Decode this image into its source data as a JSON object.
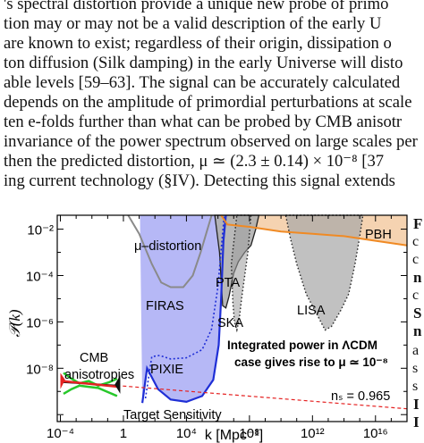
{
  "paragraph": {
    "lines": [
      "'s spectral distortion provide a unique new probe of primo",
      "tion may or may not be a valid description of the early U",
      "are known to exist; regardless of their origin, dissipation o",
      "ton diffusion (Silk damping) in the early Universe will disto",
      "able levels [59–63].  The signal can be accurately calculated",
      "depends on the amplitude of primordial perturbations at scale",
      "ten e-folds further than what can be probed by CMB anisotr",
      "invariance of the power spectrum observed on large scales per",
      "then the predicted distortion, μ ≃ (2.3 ± 0.14) × 10⁻⁸ [37",
      "ing current technology (§IV).  Detecting this signal extends"
    ]
  },
  "side_text": [
    "F",
    "c",
    "c",
    "n",
    "c",
    "S",
    "n",
    "a",
    "s",
    "s",
    "I",
    "I"
  ],
  "chart_data": {
    "type": "line",
    "xlabel": "k [Mpc⁻¹]",
    "ylabel": "𝒫(k)",
    "xscale": "log",
    "yscale": "log",
    "xlim_log10": [
      -4.2,
      18
    ],
    "ylim_log10": [
      -10.3,
      -1.4
    ],
    "x_ticks": [
      "10⁻⁴",
      "1",
      "10⁴",
      "10⁸",
      "10¹²",
      "10¹⁶"
    ],
    "x_ticks_log10": [
      -4,
      0,
      4,
      8,
      12,
      16
    ],
    "y_ticks": [
      "10⁻²",
      "10⁻⁴",
      "10⁻⁶",
      "10⁻⁸"
    ],
    "y_ticks_log10": [
      -2,
      -4,
      -6,
      -8
    ],
    "labels": {
      "mu_distortion": "μ–distortion",
      "firas": "FIRAS",
      "pixie": "PIXIE",
      "target": "Target Sensitivity",
      "pta": "PTA",
      "ska": "SKA",
      "lisa": "LISA",
      "pbh": "PBH",
      "cmb_line1": "CMB",
      "cmb_line2": "anisotropies",
      "ns": "nₛ = 0.965",
      "note_line1": "Integrated power in ΛCDM",
      "note_line2": "case gives rise to μ ≃ 10⁻⁸"
    },
    "colors": {
      "mu_region": "#a9acf5",
      "pixie_line": "#1f2fd6",
      "firas_line": "#8a8a8a",
      "pbh_line": "#f08a24",
      "pbh_fill": "#f3c89e",
      "pta_fill": "#b0b0b0",
      "ns_line": "#e52222",
      "cmb_data": "#27c82a"
    },
    "series": [
      {
        "name": "ns_line",
        "points": [
          [
            -4,
            -8.55
          ],
          [
            18,
            -9.75
          ]
        ]
      },
      {
        "name": "PIXIE",
        "points": [
          [
            1.2,
            -9.5
          ],
          [
            1.5,
            -8.0
          ],
          [
            2.2,
            -8.9
          ],
          [
            3,
            -9.35
          ],
          [
            4,
            -9.45
          ],
          [
            5,
            -9.2
          ],
          [
            5.7,
            -8.5
          ],
          [
            6.05,
            -7.0
          ],
          [
            6.2,
            -5.0
          ],
          [
            6.35,
            -2.5
          ],
          [
            6.5,
            -1.4
          ]
        ]
      },
      {
        "name": "FIRAS",
        "points": [
          [
            0.3,
            -1.4
          ],
          [
            1.0,
            -2.2
          ],
          [
            1.8,
            -3.5
          ],
          [
            2.4,
            -4.3
          ],
          [
            3.0,
            -4.5
          ],
          [
            3.8,
            -4.5
          ],
          [
            4.4,
            -4.0
          ],
          [
            4.9,
            -3.0
          ],
          [
            5.25,
            -2.2
          ],
          [
            5.6,
            -1.4
          ]
        ]
      },
      {
        "name": "PBH",
        "points": [
          [
            6.2,
            -1.4
          ],
          [
            6.6,
            -1.8
          ],
          [
            8,
            -1.9
          ],
          [
            10,
            -2.1
          ],
          [
            12,
            -2.2
          ],
          [
            14,
            -2.3
          ],
          [
            16,
            -2.5
          ],
          [
            18,
            -2.7
          ]
        ]
      }
    ]
  }
}
